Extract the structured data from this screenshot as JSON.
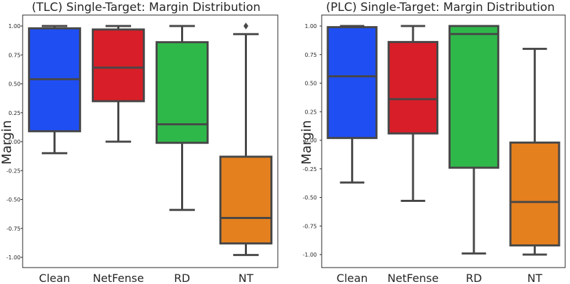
{
  "chart_data": [
    {
      "type": "box",
      "title": "(TLC) Single-Target: Margin Distribution",
      "xlabel": "",
      "ylabel": "Margin",
      "ylim": [
        -1.05,
        1.05
      ],
      "yticks": [
        "1.00",
        "0.75",
        "0.50",
        "0.25",
        "0.00",
        "-0.25",
        "-0.50",
        "-0.75",
        "-1.00"
      ],
      "categories": [
        "Clean",
        "NetFense",
        "RD",
        "NT"
      ],
      "boxes": [
        {
          "name": "Clean",
          "color": "#1f4ef2",
          "whisker_low": -0.1,
          "q1": 0.09,
          "median": 0.54,
          "q3": 0.98,
          "whisker_high": 1.0,
          "outliers": []
        },
        {
          "name": "NetFense",
          "color": "#d81e28",
          "whisker_low": 0.0,
          "q1": 0.35,
          "median": 0.64,
          "q3": 0.97,
          "whisker_high": 1.0,
          "outliers": []
        },
        {
          "name": "RD",
          "color": "#2fb84a",
          "whisker_low": -0.59,
          "q1": -0.01,
          "median": 0.15,
          "q3": 0.86,
          "whisker_high": 1.0,
          "outliers": []
        },
        {
          "name": "NT",
          "color": "#e5801e",
          "whisker_low": -0.98,
          "q1": -0.88,
          "median": -0.66,
          "q3": -0.13,
          "whisker_high": 0.93,
          "outliers": [
            1.0
          ]
        }
      ]
    },
    {
      "type": "box",
      "title": "(PLC) Single-Target: Margin Distribution",
      "xlabel": "",
      "ylabel": "Margin",
      "ylim": [
        -1.05,
        1.05
      ],
      "yticks": [
        "1.00",
        "0.75",
        "0.50",
        "0.25",
        "0.00",
        "-0.25",
        "-0.50",
        "-0.75",
        "-1.00"
      ],
      "categories": [
        "Clean",
        "NetFense",
        "RD",
        "NT"
      ],
      "boxes": [
        {
          "name": "Clean",
          "color": "#1f4ef2",
          "whisker_low": -0.37,
          "q1": 0.02,
          "median": 0.56,
          "q3": 0.99,
          "whisker_high": 1.0,
          "outliers": []
        },
        {
          "name": "NetFense",
          "color": "#d81e28",
          "whisker_low": -0.53,
          "q1": 0.06,
          "median": 0.36,
          "q3": 0.86,
          "whisker_high": 1.0,
          "outliers": []
        },
        {
          "name": "RD",
          "color": "#2fb84a",
          "whisker_low": -0.99,
          "q1": -0.24,
          "median": 0.93,
          "q3": 1.0,
          "whisker_high": 1.0,
          "outliers": []
        },
        {
          "name": "NT",
          "color": "#e5801e",
          "whisker_low": -1.0,
          "q1": -0.92,
          "median": -0.54,
          "q3": -0.02,
          "whisker_high": 0.8,
          "outliers": []
        }
      ]
    }
  ]
}
